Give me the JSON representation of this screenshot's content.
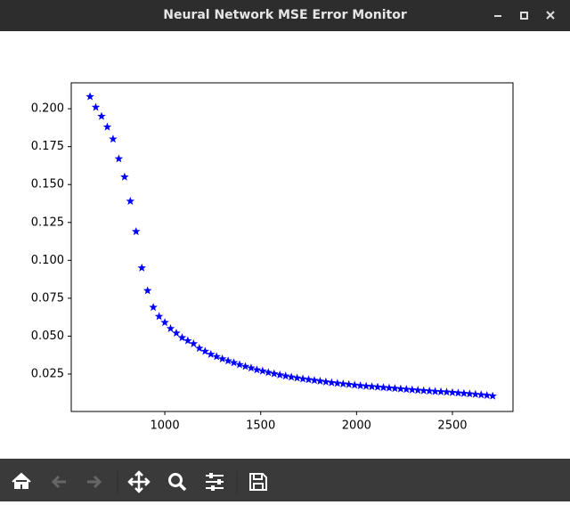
{
  "window": {
    "title": "Neural Network MSE Error Monitor"
  },
  "chart_data": {
    "type": "scatter",
    "color": "#0000ff",
    "x": [
      610,
      640,
      670,
      700,
      730,
      760,
      790,
      820,
      850,
      880,
      910,
      940,
      970,
      1000,
      1030,
      1060,
      1090,
      1120,
      1150,
      1180,
      1210,
      1240,
      1270,
      1300,
      1330,
      1360,
      1390,
      1420,
      1450,
      1480,
      1510,
      1540,
      1570,
      1600,
      1630,
      1660,
      1690,
      1720,
      1750,
      1780,
      1810,
      1840,
      1870,
      1900,
      1930,
      1960,
      1990,
      2020,
      2050,
      2080,
      2110,
      2140,
      2170,
      2200,
      2230,
      2260,
      2290,
      2320,
      2350,
      2380,
      2410,
      2440,
      2470,
      2500,
      2530,
      2560,
      2590,
      2620,
      2650,
      2680,
      2710
    ],
    "values": [
      0.208,
      0.201,
      0.195,
      0.188,
      0.18,
      0.167,
      0.155,
      0.139,
      0.119,
      0.095,
      0.08,
      0.069,
      0.063,
      0.059,
      0.055,
      0.052,
      0.049,
      0.047,
      0.045,
      0.042,
      0.04,
      0.038,
      0.0365,
      0.035,
      0.0337,
      0.0325,
      0.0312,
      0.03,
      0.029,
      0.0278,
      0.027,
      0.026,
      0.0252,
      0.0244,
      0.0237,
      0.023,
      0.0224,
      0.0218,
      0.0213,
      0.0208,
      0.0203,
      0.0198,
      0.0193,
      0.0189,
      0.0185,
      0.0181,
      0.0177,
      0.0173,
      0.017,
      0.0167,
      0.0164,
      0.0161,
      0.0158,
      0.0155,
      0.0152,
      0.0149,
      0.0146,
      0.0143,
      0.014,
      0.0138,
      0.0135,
      0.0133,
      0.0131,
      0.0128,
      0.0125,
      0.0122,
      0.0119,
      0.0116,
      0.0113,
      0.0109,
      0.0105
    ],
    "xlim": [
      512,
      2816
    ],
    "xticks": [
      1000,
      1500,
      2000,
      2500
    ],
    "ylim": [
      0.0003,
      0.2171
    ],
    "yticks": [
      0.025,
      {
        "value": 0.05,
        "label": "0.050"
      },
      0.075,
      {
        "value": 0.1,
        "label": "0.100"
      },
      0.125,
      {
        "value": 0.15,
        "label": "0.150"
      },
      0.175,
      {
        "value": 0.2,
        "label": "0.200"
      }
    ]
  }
}
